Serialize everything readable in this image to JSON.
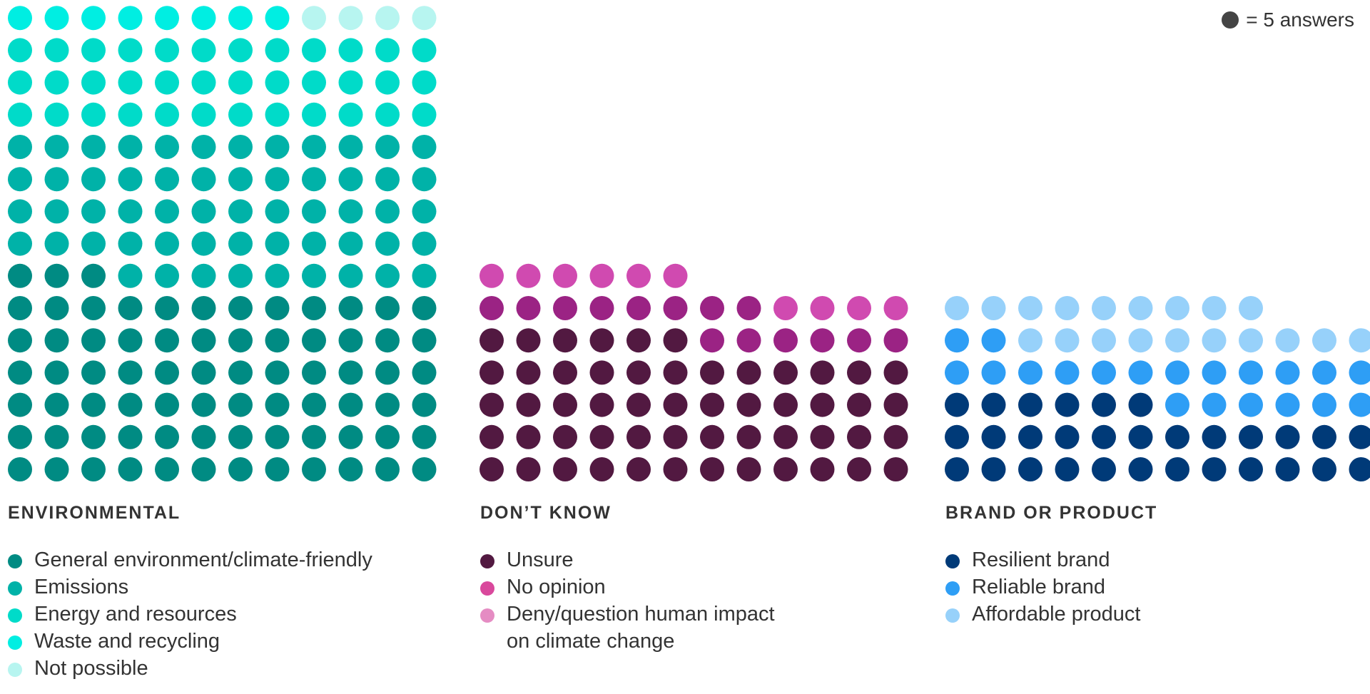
{
  "key": {
    "text": "= 5 answers",
    "dot_color": "#444444"
  },
  "chart_data": {
    "type": "waffle",
    "unit_value": 5,
    "unit_label": "= 5 answers",
    "groups": [
      {
        "title": "ENVIRONMENTAL",
        "columns": 12,
        "segments": [
          {
            "label": "General environment/climate-friendly",
            "dots": 75,
            "color": "#008b83"
          },
          {
            "label": "Emissions",
            "dots": 57,
            "color": "#00b2a8"
          },
          {
            "label": "Energy and resources",
            "dots": 36,
            "color": "#00dbc9"
          },
          {
            "label": "Waste and recycling",
            "dots": 8,
            "color": "#00eee2"
          },
          {
            "label": "Not possible",
            "dots": 4,
            "color": "#b7f5f0"
          }
        ]
      },
      {
        "title": "DON’T KNOW",
        "columns": 12,
        "segments": [
          {
            "label": "Unsure",
            "dots": 54,
            "color": "#521941"
          },
          {
            "label": "No opinion",
            "dots": 14,
            "color": "#9b2384"
          },
          {
            "label": "Deny/question human impact on climate change",
            "dots": 10,
            "color": "#d04ab0"
          }
        ]
      },
      {
        "title": "BRAND OR PRODUCT",
        "columns": 12,
        "segments": [
          {
            "label": "Resilient brand",
            "dots": 30,
            "color": "#003a78"
          },
          {
            "label": "Reliable brand",
            "dots": 20,
            "color": "#2e9ef5"
          },
          {
            "label": "Affordable product",
            "dots": 19,
            "color": "#97d1fa"
          }
        ]
      }
    ]
  }
}
